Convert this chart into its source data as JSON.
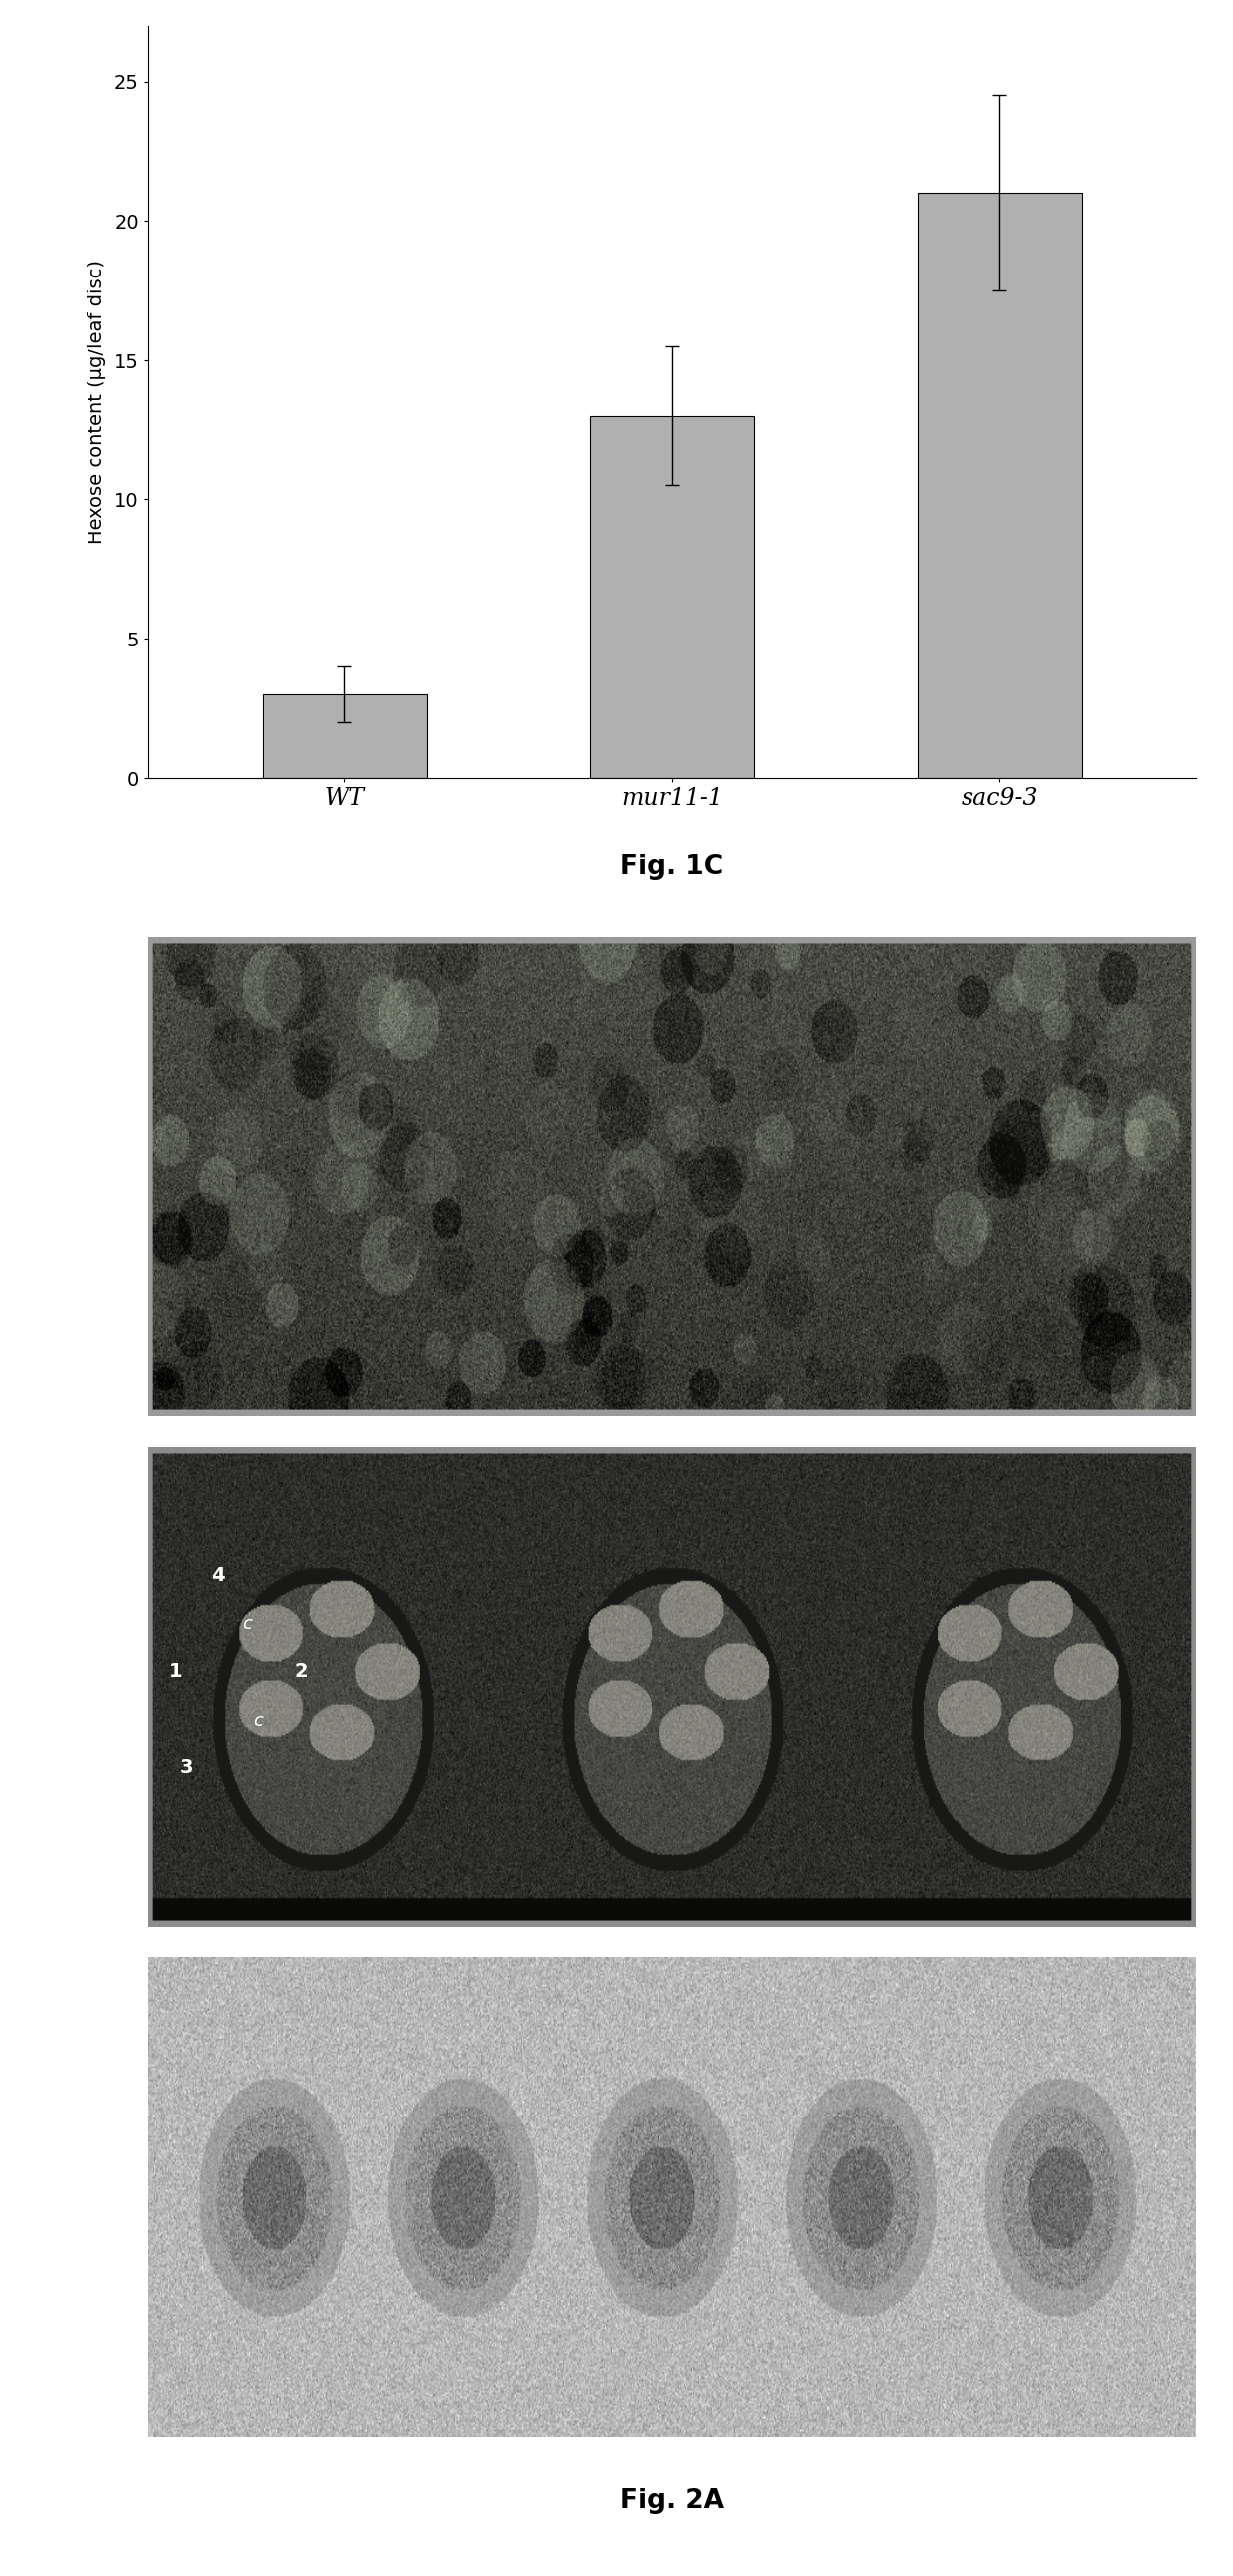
{
  "bar_categories": [
    "WT",
    "mur11-1",
    "sac9-3"
  ],
  "bar_values": [
    3.0,
    13.0,
    21.0
  ],
  "bar_errors": [
    1.0,
    2.5,
    3.5
  ],
  "bar_color": "#b0b0b0",
  "bar_edgecolor": "#000000",
  "ylabel": "Hexose content (μg/leaf disc)",
  "ylim": [
    0,
    27
  ],
  "yticks": [
    0,
    5,
    10,
    15,
    20,
    25
  ],
  "fig1c_label": "Fig. 1C",
  "fig2a_label": "Fig. 2A",
  "background_color": "#ffffff",
  "bar_width": 0.5,
  "photo1_bg": 0.3,
  "photo2_bg": 0.25,
  "photo3_bg": 0.75,
  "layout_ratios": [
    5.5,
    0.7,
    3.5,
    3.5,
    3.5,
    0.6
  ]
}
